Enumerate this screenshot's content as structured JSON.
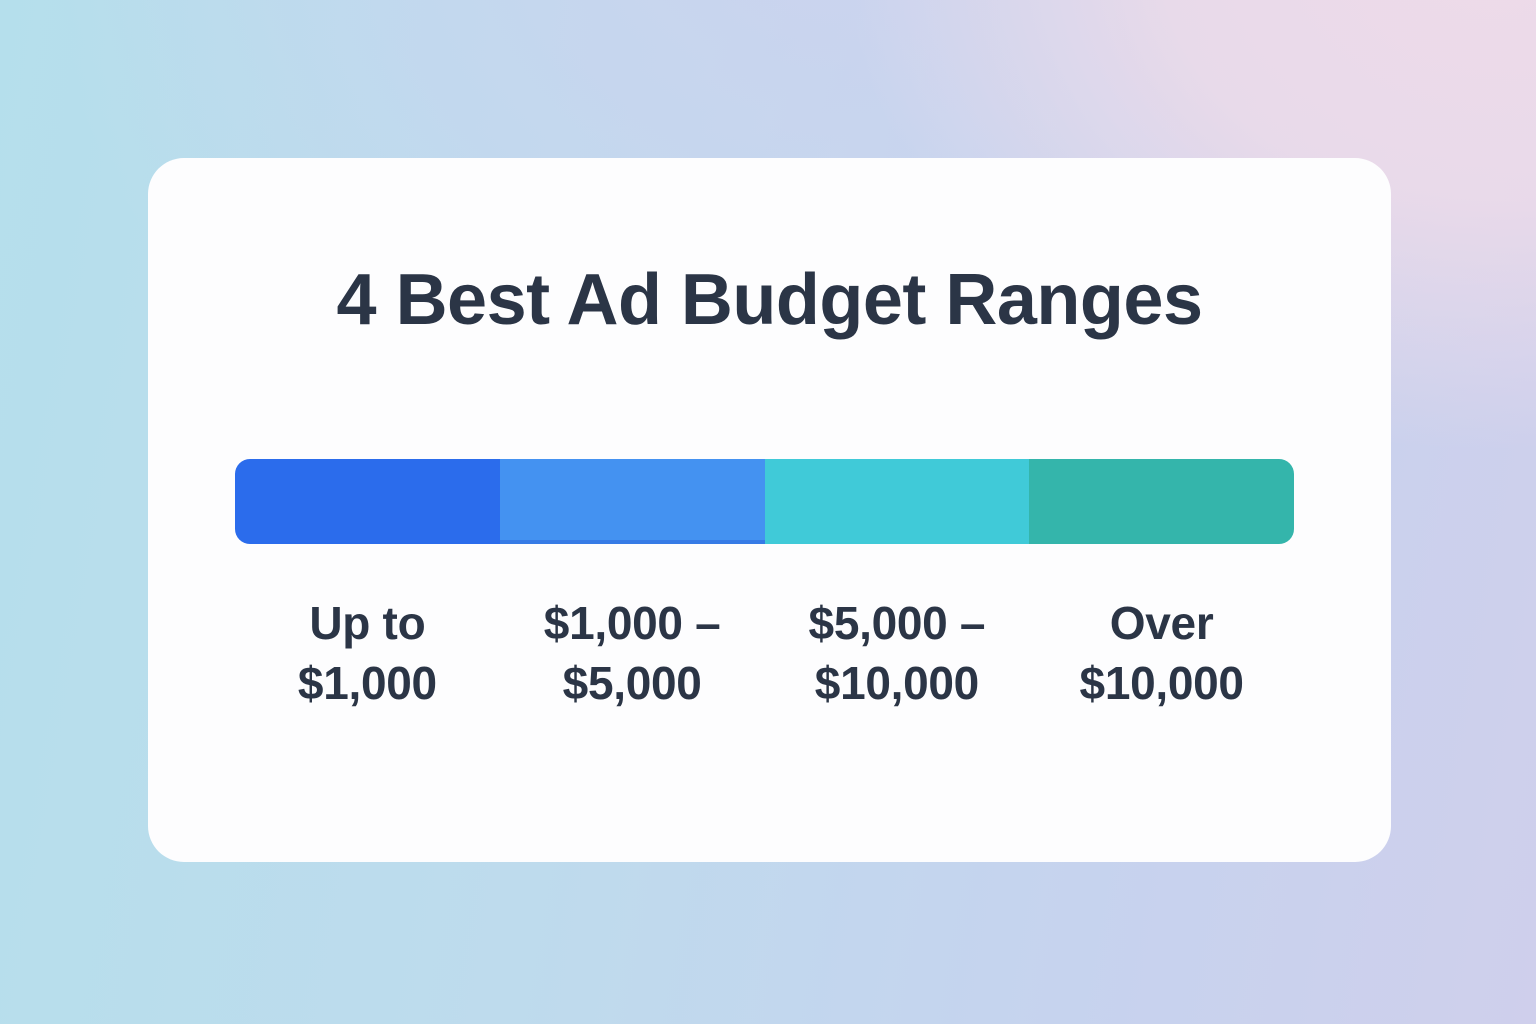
{
  "background": {
    "gradient": {
      "top_left": "#b5dfec",
      "top_center": "#ccd3ef",
      "top_right": "#eedbe9",
      "bottom_left": "#c3e2ea",
      "bottom_center": "#bfd9ee",
      "bottom_right": "#cbcdec"
    }
  },
  "card": {
    "background": "#fdfdfe",
    "title_color": "#2b3546"
  },
  "chart_data": {
    "type": "bar",
    "variant": "segmented-horizontal-bar",
    "title": "4 Best Ad Budget Ranges",
    "categories": [
      "Up to $1,000",
      "$1,000 – $5,000",
      "$5,000 – $10,000",
      "Over $10,000"
    ],
    "values": [
      25,
      25,
      25,
      25
    ],
    "values_note": "four equal-width segments; no numeric values displayed",
    "colors": [
      "#2b6cec",
      "#4492f1",
      "#40cad8",
      "#34b5ab"
    ],
    "label_color": "#2b3546",
    "legend_position": "below-bar",
    "grid": false,
    "segments": [
      {
        "label_line1": "Up to",
        "label_line2": "$1,000",
        "color": "#2b6cec"
      },
      {
        "label_line1": "$1,000 –",
        "label_line2": "$5,000",
        "color": "#4492f1"
      },
      {
        "label_line1": "$5,000 –",
        "label_line2": "$10,000",
        "color": "#40cad8"
      },
      {
        "label_line1": "Over",
        "label_line2": "$10,000",
        "color": "#34b5ab"
      }
    ]
  }
}
